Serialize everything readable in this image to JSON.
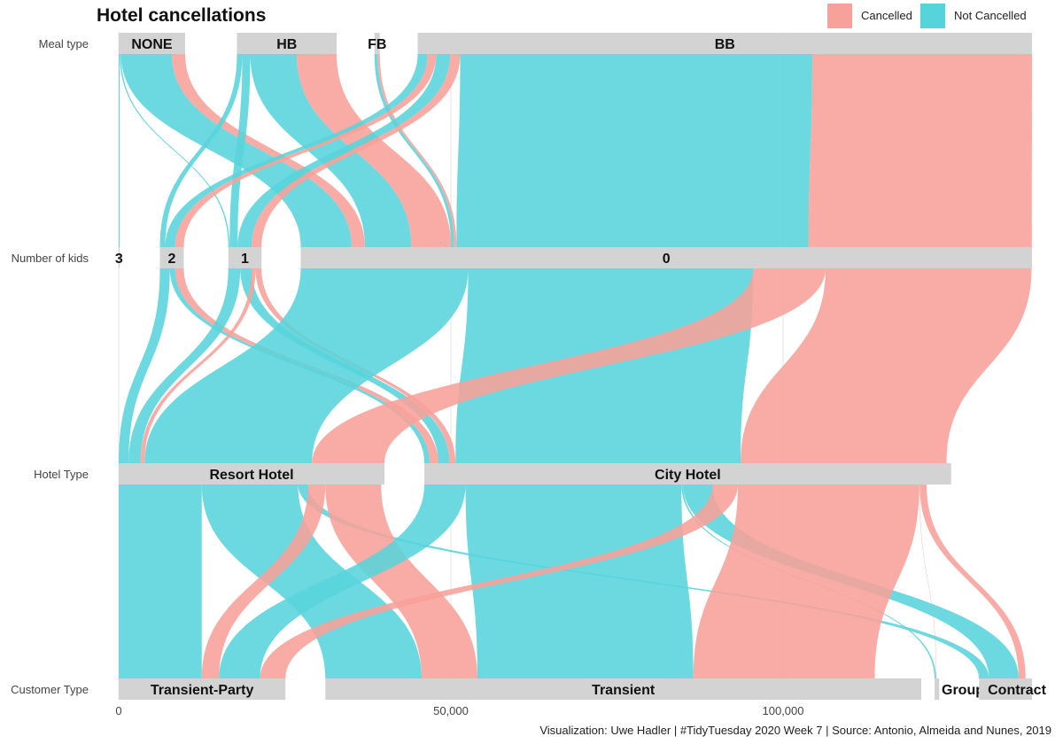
{
  "chart_data": {
    "type": "alluvial",
    "title": "Hotel cancellations",
    "caption": "Visualization: Uwe Hadler | #TidyTuesday 2020 Week 7 | Source: Antonio, Almeida and Nunes, 2019",
    "colors": {
      "Cancelled": "#f8a09a",
      "Not Cancelled": "#56d4db",
      "node": "#d3d3d3",
      "grid": "#e6e6e6"
    },
    "legend": {
      "position": "top-right",
      "entries": [
        "Cancelled",
        "Not Cancelled"
      ]
    },
    "x_range": [
      0,
      110000
    ],
    "x_ticks": [
      {
        "value": 0,
        "label": "0"
      },
      {
        "value": 50000,
        "label": "50,000"
      },
      {
        "value": 100000,
        "label": "100,000"
      }
    ],
    "axes": [
      {
        "label": "Meal type",
        "nodes": [
          {
            "name": "NONE",
            "start": 0,
            "end": 10000
          },
          {
            "name": "HB",
            "start": 17800,
            "end": 32800
          },
          {
            "name": "FB",
            "start": 38500,
            "end": 39300
          },
          {
            "name": "BB",
            "start": 45000,
            "end": 137500
          }
        ]
      },
      {
        "label": "Number of kids",
        "nodes": [
          {
            "name": "3",
            "start": 0,
            "end": 100
          },
          {
            "name": "2",
            "start": 6200,
            "end": 9800
          },
          {
            "name": "1",
            "start": 16500,
            "end": 21500
          },
          {
            "name": "0",
            "start": 27400,
            "end": 137500
          }
        ]
      },
      {
        "label": "Hotel Type",
        "nodes": [
          {
            "name": "Resort Hotel",
            "start": 0,
            "end": 40000
          },
          {
            "name": "City Hotel",
            "start": 46000,
            "end": 125300
          }
        ]
      },
      {
        "label": "Customer Type",
        "nodes": [
          {
            "name": "Transient-Party",
            "start": 0,
            "end": 25100
          },
          {
            "name": "Transient",
            "start": 31100,
            "end": 120800
          },
          {
            "name": "Group",
            "start": 122800,
            "end": 123500
          },
          {
            "name": "Contract",
            "start": 129500,
            "end": 137500
          }
        ]
      }
    ],
    "flows": [
      {
        "from": [
          0,
          0
        ],
        "to": [
          1,
          0
        ],
        "status": "Not Cancelled",
        "v": 150
      },
      {
        "from": [
          0,
          0
        ],
        "to": [
          1,
          2
        ],
        "status": "Not Cancelled",
        "v": 200
      },
      {
        "from": [
          0,
          0
        ],
        "to": [
          1,
          3
        ],
        "status": "Not Cancelled",
        "v": 7650
      },
      {
        "from": [
          0,
          0
        ],
        "to": [
          1,
          3
        ],
        "status": "Cancelled",
        "v": 2000
      },
      {
        "from": [
          0,
          1
        ],
        "to": [
          1,
          1
        ],
        "status": "Not Cancelled",
        "v": 800
      },
      {
        "from": [
          0,
          1
        ],
        "to": [
          1,
          2
        ],
        "status": "Not Cancelled",
        "v": 1200
      },
      {
        "from": [
          0,
          1
        ],
        "to": [
          1,
          3
        ],
        "status": "Not Cancelled",
        "v": 7000
      },
      {
        "from": [
          0,
          1
        ],
        "to": [
          1,
          3
        ],
        "status": "Cancelled",
        "v": 6000
      },
      {
        "from": [
          0,
          2
        ],
        "to": [
          1,
          3
        ],
        "status": "Not Cancelled",
        "v": 450
      },
      {
        "from": [
          0,
          2
        ],
        "to": [
          1,
          3
        ],
        "status": "Cancelled",
        "v": 350
      },
      {
        "from": [
          0,
          3
        ],
        "to": [
          1,
          1
        ],
        "status": "Not Cancelled",
        "v": 1500
      },
      {
        "from": [
          0,
          3
        ],
        "to": [
          1,
          1
        ],
        "status": "Cancelled",
        "v": 1300
      },
      {
        "from": [
          0,
          3
        ],
        "to": [
          1,
          2
        ],
        "status": "Not Cancelled",
        "v": 2100
      },
      {
        "from": [
          0,
          3
        ],
        "to": [
          1,
          2
        ],
        "status": "Cancelled",
        "v": 1500
      },
      {
        "from": [
          0,
          3
        ],
        "to": [
          1,
          3
        ],
        "status": "Not Cancelled",
        "v": 53000
      },
      {
        "from": [
          0,
          3
        ],
        "to": [
          1,
          3
        ],
        "status": "Cancelled",
        "v": 33600
      },
      {
        "from": [
          1,
          1
        ],
        "to": [
          2,
          0
        ],
        "status": "Not Cancelled",
        "v": 1500
      },
      {
        "from": [
          1,
          1
        ],
        "to": [
          2,
          1
        ],
        "status": "Not Cancelled",
        "v": 800
      },
      {
        "from": [
          1,
          1
        ],
        "to": [
          2,
          1
        ],
        "status": "Cancelled",
        "v": 1300
      },
      {
        "from": [
          1,
          2
        ],
        "to": [
          2,
          0
        ],
        "status": "Not Cancelled",
        "v": 1800
      },
      {
        "from": [
          1,
          2
        ],
        "to": [
          2,
          1
        ],
        "status": "Not Cancelled",
        "v": 1700
      },
      {
        "from": [
          1,
          2
        ],
        "to": [
          2,
          0
        ],
        "status": "Cancelled",
        "v": 600
      },
      {
        "from": [
          1,
          2
        ],
        "to": [
          2,
          1
        ],
        "status": "Cancelled",
        "v": 900
      },
      {
        "from": [
          1,
          3
        ],
        "to": [
          2,
          0
        ],
        "status": "Not Cancelled",
        "v": 25200
      },
      {
        "from": [
          1,
          3
        ],
        "to": [
          2,
          1
        ],
        "status": "Not Cancelled",
        "v": 42900
      },
      {
        "from": [
          1,
          3
        ],
        "to": [
          2,
          0
        ],
        "status": "Cancelled",
        "v": 10900
      },
      {
        "from": [
          1,
          3
        ],
        "to": [
          2,
          1
        ],
        "status": "Cancelled",
        "v": 31000
      },
      {
        "from": [
          2,
          0
        ],
        "to": [
          3,
          0
        ],
        "status": "Not Cancelled",
        "v": 12500
      },
      {
        "from": [
          2,
          0
        ],
        "to": [
          3,
          1
        ],
        "status": "Not Cancelled",
        "v": 14500
      },
      {
        "from": [
          2,
          0
        ],
        "to": [
          3,
          3
        ],
        "status": "Not Cancelled",
        "v": 1500
      },
      {
        "from": [
          2,
          0
        ],
        "to": [
          3,
          0
        ],
        "status": "Cancelled",
        "v": 2600
      },
      {
        "from": [
          2,
          0
        ],
        "to": [
          3,
          1
        ],
        "status": "Cancelled",
        "v": 8400
      },
      {
        "from": [
          2,
          1
        ],
        "to": [
          3,
          0
        ],
        "status": "Not Cancelled",
        "v": 6200
      },
      {
        "from": [
          2,
          1
        ],
        "to": [
          3,
          1
        ],
        "status": "Not Cancelled",
        "v": 32500
      },
      {
        "from": [
          2,
          1
        ],
        "to": [
          3,
          2
        ],
        "status": "Not Cancelled",
        "v": 250
      },
      {
        "from": [
          2,
          1
        ],
        "to": [
          3,
          3
        ],
        "status": "Not Cancelled",
        "v": 4450
      },
      {
        "from": [
          2,
          1
        ],
        "to": [
          3,
          0
        ],
        "status": "Cancelled",
        "v": 3800
      },
      {
        "from": [
          2,
          1
        ],
        "to": [
          3,
          1
        ],
        "status": "Cancelled",
        "v": 27300
      },
      {
        "from": [
          2,
          1
        ],
        "to": [
          3,
          2
        ],
        "status": "Cancelled",
        "v": 50
      },
      {
        "from": [
          2,
          1
        ],
        "to": [
          3,
          3
        ],
        "status": "Cancelled",
        "v": 1050
      }
    ]
  }
}
